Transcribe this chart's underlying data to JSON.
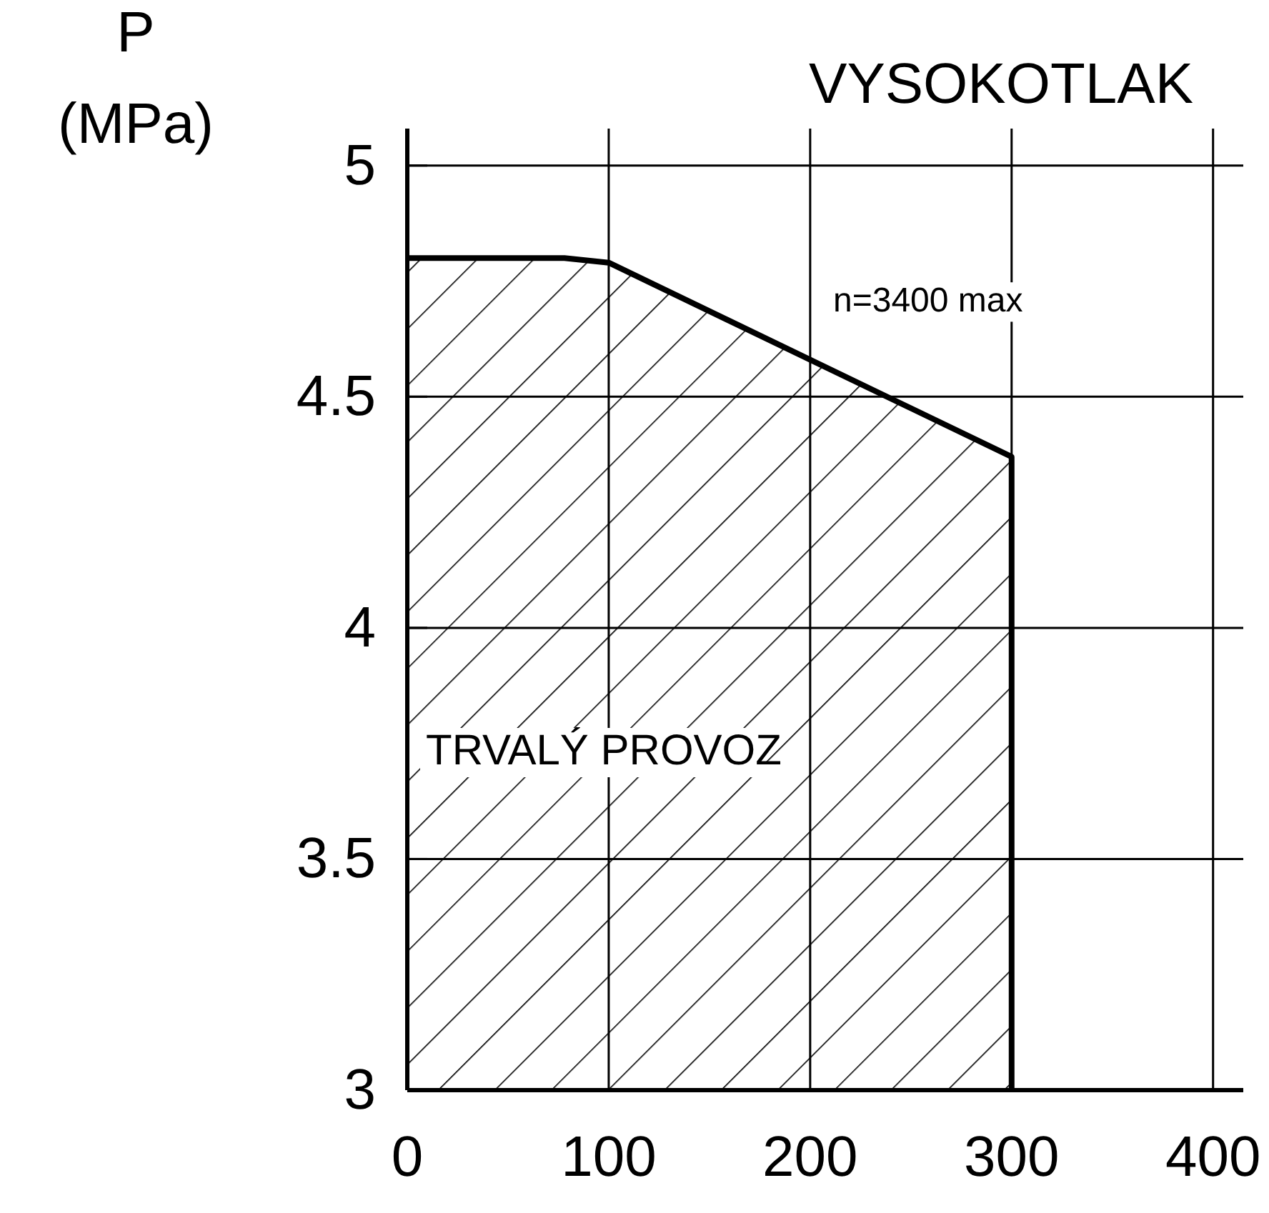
{
  "chart_data": {
    "type": "area",
    "title": "VYSOKOTLAK",
    "ylabel": "P (MPa)",
    "x": [
      0,
      78,
      100,
      300
    ],
    "series": [
      {
        "color": "#000000",
        "values": [
          4.8,
          4.8,
          4.79,
          4.37
        ]
      }
    ],
    "xlim": [
      0,
      415
    ],
    "xticks": [
      0,
      100,
      200,
      300,
      400
    ],
    "ylim": [
      3,
      5.08
    ],
    "yticks": [
      3,
      3.5,
      4,
      4.5,
      5
    ],
    "grid": true,
    "annotations": [
      "n=3400 max",
      "TRVALÝ PROVOZ"
    ]
  }
}
